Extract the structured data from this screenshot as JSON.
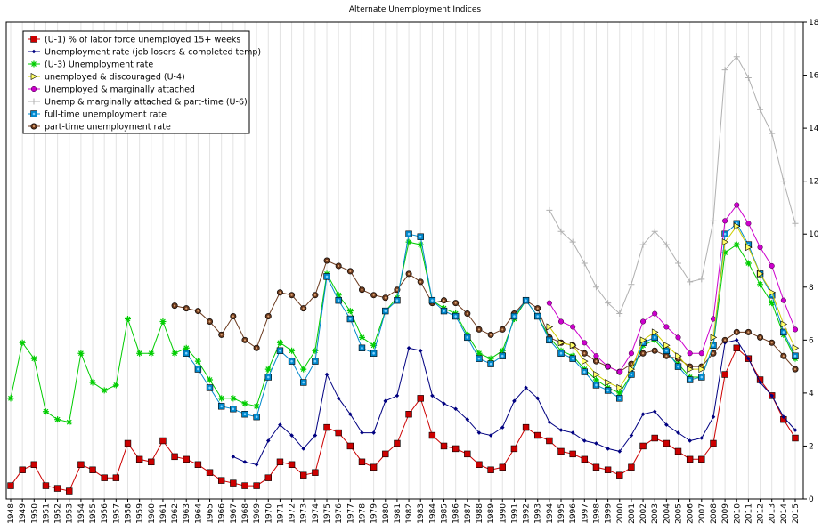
{
  "chart_data": {
    "type": "line",
    "title": "Alternate Unemployment Indices",
    "xlabel": "",
    "ylabel": "",
    "xlim": [
      1948,
      2015
    ],
    "ylim": [
      0,
      18
    ],
    "y_ticks": [
      0,
      2,
      4,
      6,
      8,
      10,
      12,
      14,
      16,
      18
    ],
    "y_axis_side": "right",
    "grid": "vertical",
    "legend_position": "top-left",
    "x": [
      1948,
      1949,
      1950,
      1951,
      1952,
      1953,
      1954,
      1955,
      1956,
      1957,
      1958,
      1959,
      1960,
      1961,
      1962,
      1963,
      1964,
      1965,
      1966,
      1967,
      1968,
      1969,
      1970,
      1971,
      1972,
      1973,
      1974,
      1975,
      1976,
      1977,
      1978,
      1979,
      1980,
      1981,
      1982,
      1983,
      1984,
      1985,
      1986,
      1987,
      1988,
      1989,
      1990,
      1991,
      1992,
      1993,
      1994,
      1995,
      1996,
      1997,
      1998,
      1999,
      2000,
      2001,
      2002,
      2003,
      2004,
      2005,
      2006,
      2007,
      2008,
      2009,
      2010,
      2011,
      2012,
      2013,
      2014,
      2015
    ],
    "series": [
      {
        "name": "(U-1) % of labor force unemployed 15+ weeks",
        "color": "#cc0000",
        "marker": "square",
        "values": [
          0.5,
          1.1,
          1.3,
          0.5,
          0.4,
          0.3,
          1.3,
          1.1,
          0.8,
          0.8,
          2.1,
          1.5,
          1.4,
          2.2,
          1.6,
          1.5,
          1.3,
          1.0,
          0.7,
          0.6,
          0.5,
          0.5,
          0.8,
          1.4,
          1.3,
          0.9,
          1.0,
          2.7,
          2.5,
          2.0,
          1.4,
          1.2,
          1.7,
          2.1,
          3.2,
          3.8,
          2.4,
          2.0,
          1.9,
          1.7,
          1.3,
          1.1,
          1.2,
          1.9,
          2.7,
          2.4,
          2.2,
          1.8,
          1.7,
          1.5,
          1.2,
          1.1,
          0.9,
          1.2,
          2.0,
          2.3,
          2.1,
          1.8,
          1.5,
          1.5,
          2.1,
          4.7,
          5.7,
          5.3,
          4.5,
          3.9,
          3.0,
          2.3
        ]
      },
      {
        "name": "Unemployment rate (job losers & completed temp)",
        "color": "#000080",
        "marker": "diamond",
        "values": [
          null,
          null,
          null,
          null,
          null,
          null,
          null,
          null,
          null,
          null,
          null,
          null,
          null,
          null,
          null,
          null,
          null,
          null,
          null,
          1.6,
          1.4,
          1.3,
          2.2,
          2.8,
          2.4,
          1.9,
          2.4,
          4.7,
          3.8,
          3.2,
          2.5,
          2.5,
          3.7,
          3.9,
          5.7,
          5.6,
          3.9,
          3.6,
          3.4,
          3.0,
          2.5,
          2.4,
          2.7,
          3.7,
          4.2,
          3.8,
          2.9,
          2.6,
          2.5,
          2.2,
          2.1,
          1.9,
          1.8,
          2.4,
          3.2,
          3.3,
          2.8,
          2.5,
          2.2,
          2.3,
          3.1,
          5.9,
          6.0,
          5.3,
          4.4,
          3.9,
          3.1,
          2.6
        ]
      },
      {
        "name": "(U-3) Unemployment rate",
        "color": "#00cc00",
        "marker": "star",
        "values": [
          3.8,
          5.9,
          5.3,
          3.3,
          3.0,
          2.9,
          5.5,
          4.4,
          4.1,
          4.3,
          6.8,
          5.5,
          5.5,
          6.7,
          5.5,
          5.7,
          5.2,
          4.5,
          3.8,
          3.8,
          3.6,
          3.5,
          4.9,
          5.9,
          5.6,
          4.9,
          5.6,
          8.5,
          7.7,
          7.1,
          6.1,
          5.8,
          7.1,
          7.6,
          9.7,
          9.6,
          7.5,
          7.2,
          7.0,
          6.2,
          5.5,
          5.3,
          5.6,
          6.8,
          7.5,
          6.9,
          6.1,
          5.6,
          5.4,
          4.9,
          4.5,
          4.2,
          4.0,
          4.7,
          5.8,
          6.0,
          5.5,
          5.1,
          4.6,
          4.6,
          5.8,
          9.3,
          9.6,
          8.9,
          8.1,
          7.4,
          6.2,
          5.3
        ]
      },
      {
        "name": "unemployed & discouraged (U-4)",
        "color": "#cccc00",
        "marker": "triangle",
        "values": [
          null,
          null,
          null,
          null,
          null,
          null,
          null,
          null,
          null,
          null,
          null,
          null,
          null,
          null,
          null,
          null,
          null,
          null,
          null,
          null,
          null,
          null,
          null,
          null,
          null,
          null,
          null,
          null,
          null,
          null,
          null,
          null,
          null,
          null,
          null,
          null,
          null,
          null,
          null,
          null,
          null,
          null,
          null,
          null,
          null,
          null,
          6.5,
          5.9,
          5.8,
          5.2,
          4.7,
          4.4,
          4.2,
          4.9,
          6.0,
          6.3,
          5.8,
          5.4,
          4.9,
          4.9,
          6.1,
          9.7,
          10.3,
          9.5,
          8.5,
          7.8,
          6.6,
          5.7
        ]
      },
      {
        "name": "Unemployed & marginally attached",
        "color": "#cc00cc",
        "marker": "circle",
        "values": [
          null,
          null,
          null,
          null,
          null,
          null,
          null,
          null,
          null,
          null,
          null,
          null,
          null,
          null,
          null,
          null,
          null,
          null,
          null,
          null,
          null,
          null,
          null,
          null,
          null,
          null,
          null,
          null,
          null,
          null,
          null,
          null,
          null,
          null,
          null,
          null,
          null,
          null,
          null,
          null,
          null,
          null,
          null,
          null,
          null,
          null,
          7.4,
          6.7,
          6.5,
          5.9,
          5.4,
          5.0,
          4.8,
          5.5,
          6.7,
          7.0,
          6.5,
          6.1,
          5.5,
          5.5,
          6.8,
          10.5,
          11.1,
          10.4,
          9.5,
          8.8,
          7.5,
          6.4
        ]
      },
      {
        "name": "Unemp & marginally attached & part-time (U-6)",
        "color": "#b0b0b0",
        "marker": "plus",
        "values": [
          null,
          null,
          null,
          null,
          null,
          null,
          null,
          null,
          null,
          null,
          null,
          null,
          null,
          null,
          null,
          null,
          null,
          null,
          null,
          null,
          null,
          null,
          null,
          null,
          null,
          null,
          null,
          null,
          null,
          null,
          null,
          null,
          null,
          null,
          null,
          null,
          null,
          null,
          null,
          null,
          null,
          null,
          null,
          null,
          null,
          null,
          10.9,
          10.1,
          9.7,
          8.9,
          8.0,
          7.4,
          7.0,
          8.1,
          9.6,
          10.1,
          9.6,
          8.9,
          8.2,
          8.3,
          10.5,
          16.2,
          16.7,
          15.9,
          14.7,
          13.8,
          12.0,
          10.4
        ]
      },
      {
        "name": "full-time unemployment rate",
        "color": "#0088cc",
        "marker": "square-dot",
        "values": [
          null,
          null,
          null,
          null,
          null,
          null,
          null,
          null,
          null,
          null,
          null,
          null,
          null,
          null,
          null,
          5.5,
          4.9,
          4.2,
          3.5,
          3.4,
          3.2,
          3.1,
          4.6,
          5.6,
          5.2,
          4.4,
          5.2,
          8.4,
          7.5,
          6.8,
          5.7,
          5.5,
          7.1,
          7.5,
          10.0,
          9.9,
          7.5,
          7.1,
          6.9,
          6.1,
          5.3,
          5.1,
          5.4,
          6.9,
          7.5,
          6.9,
          6.0,
          5.5,
          5.3,
          4.8,
          4.3,
          4.1,
          3.8,
          4.7,
          5.9,
          6.1,
          5.6,
          5.0,
          4.5,
          4.6,
          5.8,
          10.0,
          10.4,
          9.6,
          8.5,
          7.7,
          6.3,
          5.4
        ]
      },
      {
        "name": "part-time unemployment rate",
        "color": "#6b3a1e",
        "marker": "circle-dot",
        "values": [
          null,
          null,
          null,
          null,
          null,
          null,
          null,
          null,
          null,
          null,
          null,
          null,
          null,
          null,
          7.3,
          7.2,
          7.1,
          6.7,
          6.2,
          6.9,
          6.0,
          5.7,
          6.9,
          7.8,
          7.7,
          7.2,
          7.7,
          9.0,
          8.8,
          8.6,
          7.9,
          7.7,
          7.6,
          7.9,
          8.5,
          8.2,
          7.4,
          7.5,
          7.4,
          7.0,
          6.4,
          6.2,
          6.4,
          7.0,
          7.5,
          7.2,
          6.1,
          5.9,
          5.8,
          5.5,
          5.2,
          5.0,
          4.8,
          5.1,
          5.5,
          5.6,
          5.4,
          5.3,
          5.0,
          5.0,
          5.5,
          6.0,
          6.3,
          6.3,
          6.1,
          5.9,
          5.4,
          4.9
        ]
      }
    ]
  }
}
